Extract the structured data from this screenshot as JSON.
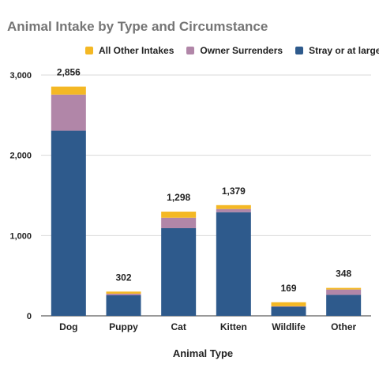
{
  "chart_data": {
    "type": "bar",
    "stacked": true,
    "title": "Animal Intake by Type and Circumstance",
    "xlabel": "Animal Type",
    "ylabel": "",
    "ylim": [
      0,
      3000
    ],
    "yticks": [
      0,
      1000,
      2000,
      3000
    ],
    "ytick_labels": [
      "0",
      "1,000",
      "2,000",
      "3,000"
    ],
    "grid": true,
    "legend_position": "top",
    "categories": [
      "Dog",
      "Puppy",
      "Cat",
      "Kitten",
      "Wildlife",
      "Other"
    ],
    "series": [
      {
        "name": "Stray or at large",
        "color": "#2e5a8c",
        "values": [
          2306,
          256,
          1092,
          1291,
          113,
          262
        ]
      },
      {
        "name": "Owner Surrenders",
        "color": "#b186a8",
        "values": [
          450,
          20,
          130,
          40,
          6,
          66
        ]
      },
      {
        "name": "All Other Intakes",
        "color": "#f4b824",
        "values": [
          100,
          26,
          76,
          48,
          50,
          20
        ]
      }
    ],
    "totals": [
      2856,
      302,
      1298,
      1379,
      169,
      348
    ],
    "total_labels": [
      "2,856",
      "302",
      "1,298",
      "1,379",
      "169",
      "348"
    ],
    "legend_order": [
      "All Other Intakes",
      "Owner Surrenders",
      "Stray or at large"
    ]
  }
}
